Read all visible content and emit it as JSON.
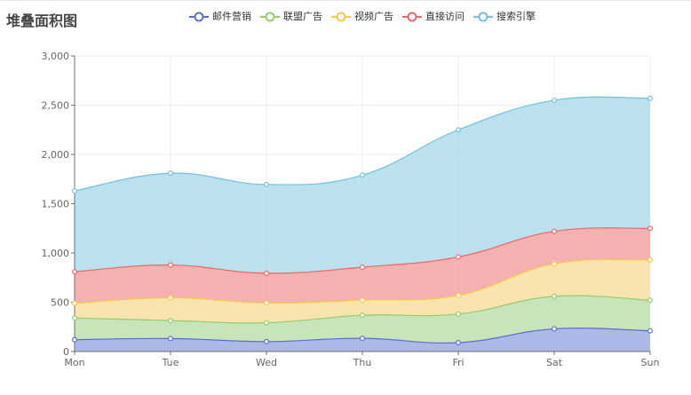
{
  "chart_data": {
    "type": "area",
    "title": "堆叠面积图",
    "categories": [
      "Mon",
      "Tue",
      "Wed",
      "Thu",
      "Fri",
      "Sat",
      "Sun"
    ],
    "ylim": [
      0,
      3000
    ],
    "yticks": [
      0,
      500,
      1000,
      1500,
      2000,
      2500,
      3000
    ],
    "ytick_labels": [
      "0",
      "500",
      "1,000",
      "1,500",
      "2,000",
      "2,500",
      "3,000"
    ],
    "stacked": true,
    "grid": true,
    "legend_position": "top-center",
    "series": [
      {
        "name": "邮件营销",
        "values": [
          120,
          132,
          101,
          134,
          90,
          230,
          210
        ],
        "color": "#5b6fd0",
        "fill": "#a8b4e4"
      },
      {
        "name": "联盟广告",
        "values": [
          220,
          182,
          191,
          234,
          290,
          330,
          310
        ],
        "color": "#93cd6e",
        "fill": "#c5e3b6"
      },
      {
        "name": "视频广告",
        "values": [
          150,
          232,
          201,
          154,
          190,
          330,
          410
        ],
        "color": "#fbc748",
        "fill": "#f9e1aa"
      },
      {
        "name": "直接访问",
        "values": [
          320,
          332,
          301,
          334,
          390,
          330,
          320
        ],
        "color": "#ee6666",
        "fill": "#f4adad"
      },
      {
        "name": "搜索引擎",
        "values": [
          820,
          932,
          901,
          934,
          1290,
          1330,
          1320
        ],
        "color": "#73c0de",
        "fill": "#b7dfee"
      }
    ]
  }
}
